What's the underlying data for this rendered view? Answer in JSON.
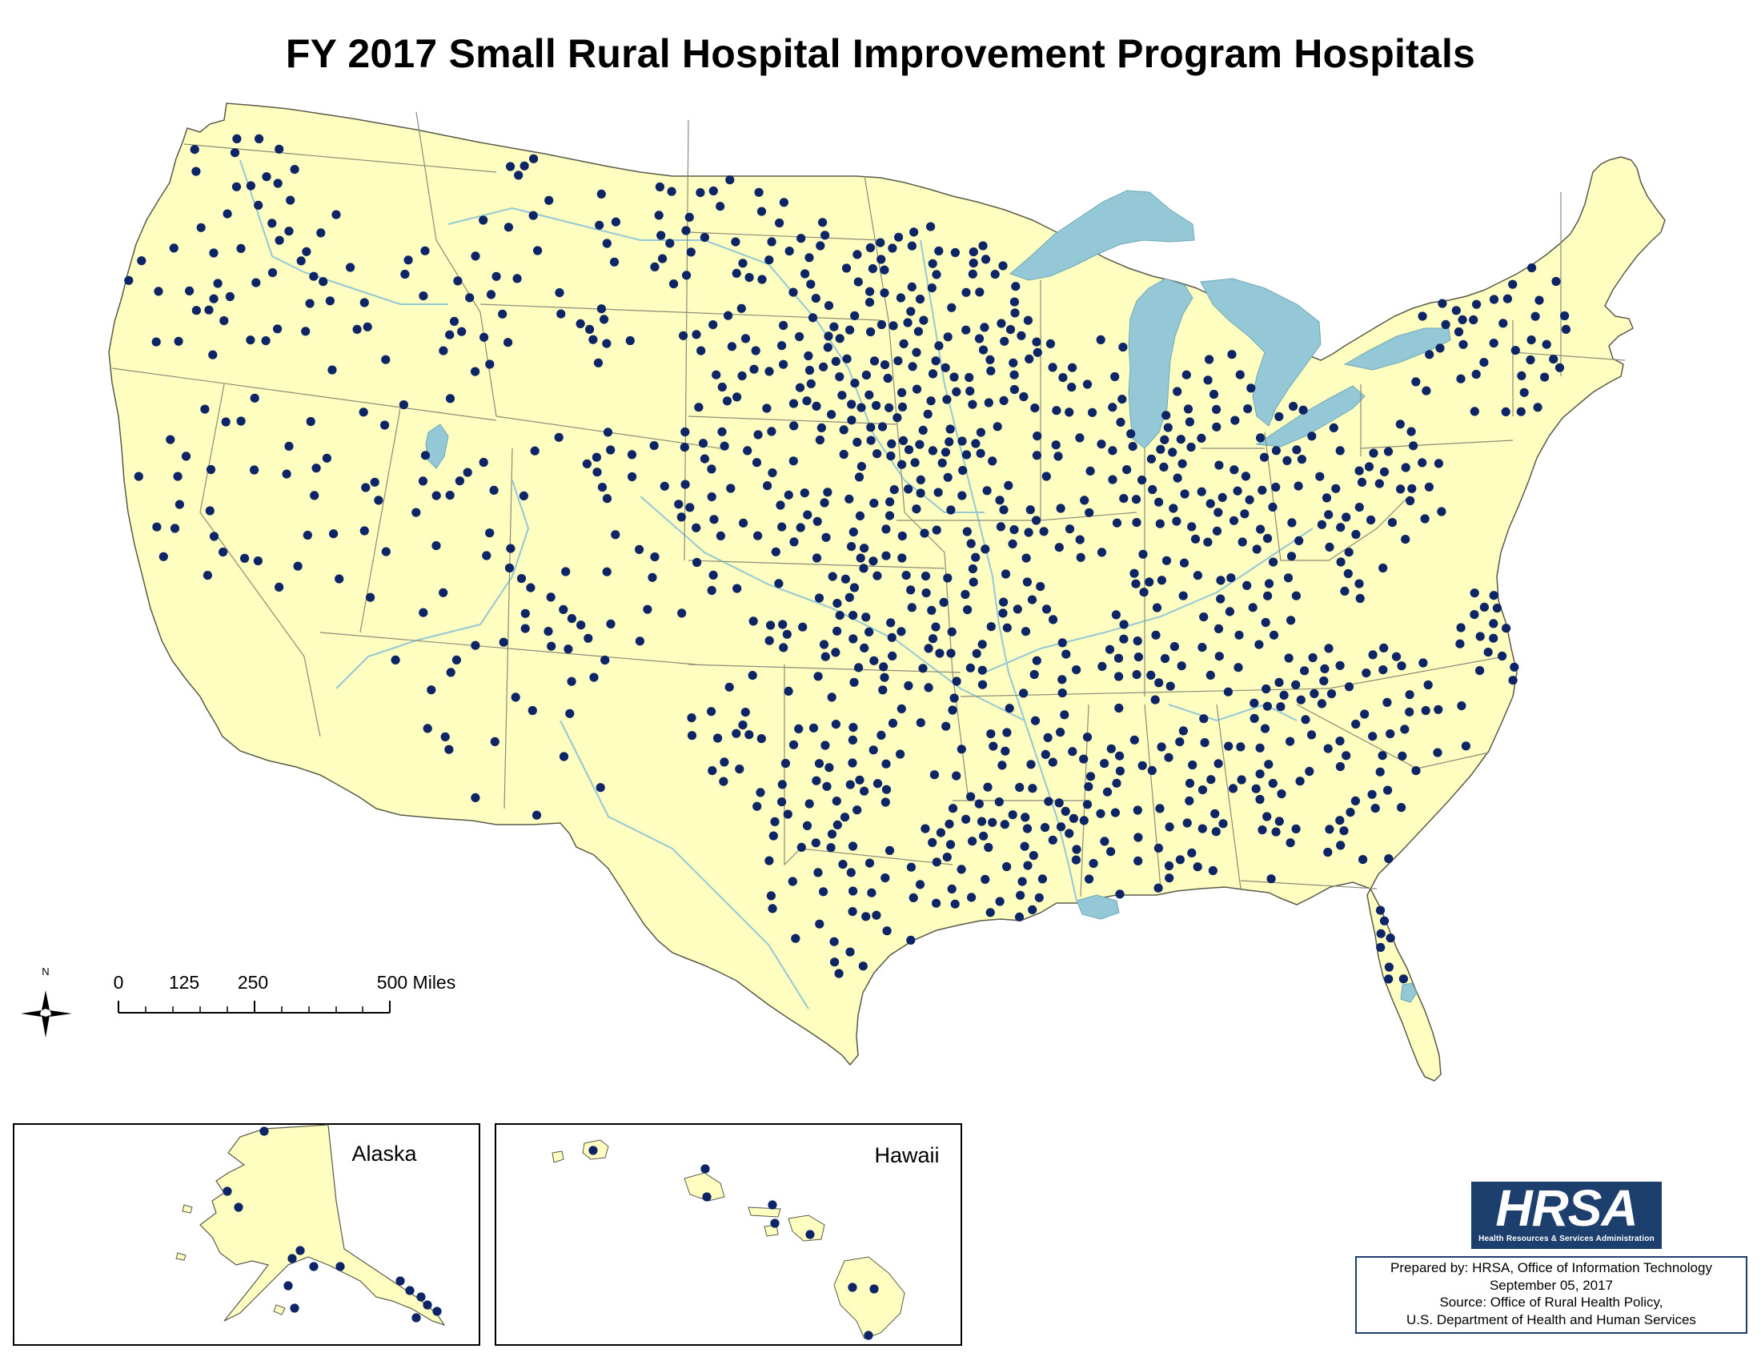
{
  "title": "FY 2017 Small Rural Hospital Improvement Program Hospitals",
  "map_colors": {
    "land": "#fefec0",
    "water": "#94c8d6",
    "border": "#8c8c78",
    "hospital_marker": "#0d2466",
    "ocean": "#ffffff"
  },
  "layer_icons": {
    "hospital": "filled-circle-marker",
    "north_arrow": "compass-rose-icon"
  },
  "north_arrow": {
    "label": "N"
  },
  "scale_bar": {
    "tick_labels": [
      "0",
      "125",
      "250",
      "500 Miles"
    ]
  },
  "insets": {
    "alaska": {
      "label": "Alaska"
    },
    "hawaii": {
      "label": "Hawaii"
    }
  },
  "logo": {
    "wordmark": "HRSA",
    "tagline": "Health Resources & Services Administration"
  },
  "credits": {
    "prepared_by": "Prepared by:  HRSA, Office of Information Technology",
    "date": "September 05, 2017",
    "source": "Source:  Office of Rural Health Policy,",
    "department": "U.S. Department of Health and Human Services"
  }
}
